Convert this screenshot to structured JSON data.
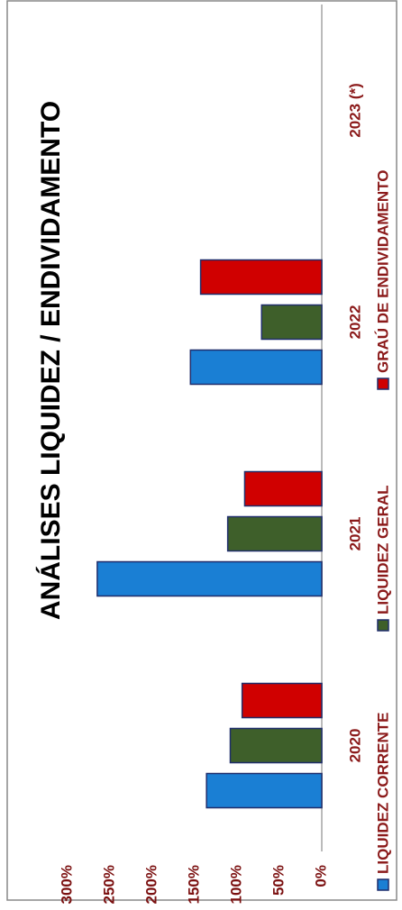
{
  "chart_data": {
    "type": "bar",
    "title": "ANÁLISES LIQUIDEZ / ENDIVIDAMENTO",
    "categories": [
      "2020",
      "2021",
      "2022",
      "2023 (*)"
    ],
    "series": [
      {
        "name": "LIQUIDEZ CORRENTE",
        "color": "#1a7fd4",
        "values": [
          136,
          265,
          155,
          null
        ]
      },
      {
        "name": "LIQUIDEZ GERAL",
        "color": "#3e5f2a",
        "values": [
          108,
          111,
          71,
          null
        ]
      },
      {
        "name": "GRAÚ DE ENDIVIDAMENTO",
        "color": "#d00000",
        "values": [
          94,
          91,
          143,
          null
        ]
      }
    ],
    "ylim": [
      0,
      300
    ],
    "yticks": [
      {
        "value": 0,
        "label": "0%"
      },
      {
        "value": 50,
        "label": "50%"
      },
      {
        "value": 100,
        "label": "100%"
      },
      {
        "value": 150,
        "label": "150%"
      },
      {
        "value": 200,
        "label": "200%"
      },
      {
        "value": 250,
        "label": "250%"
      },
      {
        "value": 300,
        "label": "300%"
      }
    ],
    "grid": false,
    "legend": "bottom"
  }
}
